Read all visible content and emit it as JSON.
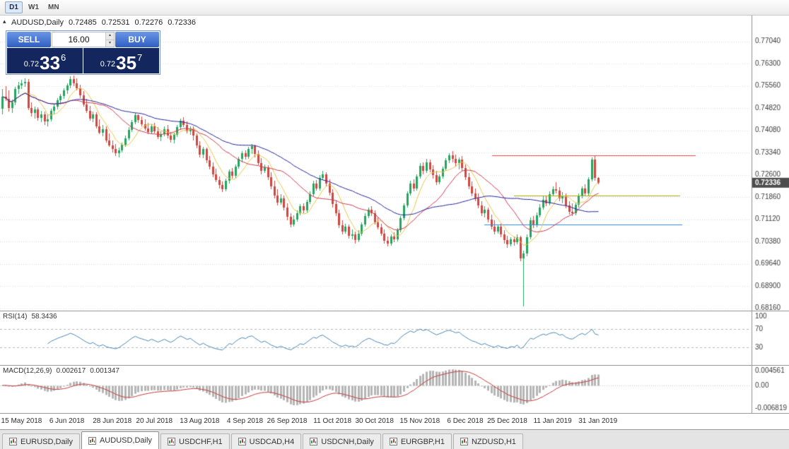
{
  "toolbar": {
    "timeframes": [
      {
        "label": "D1",
        "active": true
      },
      {
        "label": "W1",
        "active": false
      },
      {
        "label": "MN",
        "active": false
      }
    ]
  },
  "icons": {
    "one_click_collapse": "▴",
    "volume_up": "▴",
    "volume_down": "▾"
  },
  "chart_header": {
    "symbol_title": "AUDUSD,Daily",
    "open": "0.72485",
    "high": "0.72531",
    "low": "0.72276",
    "close": "0.72336"
  },
  "one_click": {
    "sell_label": "SELL",
    "buy_label": "BUY",
    "volume": "16.00",
    "bid_small": "0.72",
    "bid_big": "33",
    "bid_pip": "6",
    "ask_small": "0.72",
    "ask_big": "35",
    "ask_pip": "7"
  },
  "indicators": {
    "rsi": {
      "name": "RSI(14)",
      "value": "58.3436"
    },
    "macd": {
      "name": "MACD(12,26,9)",
      "value1": "0.002617",
      "value2": "0.001347"
    }
  },
  "tabs": [
    {
      "label": "EURUSD,Daily",
      "active": false
    },
    {
      "label": "AUDUSD,Daily",
      "active": true
    },
    {
      "label": "USDCHF,H1",
      "active": false
    },
    {
      "label": "USDCAD,H4",
      "active": false
    },
    {
      "label": "USDCNH,Daily",
      "active": false
    },
    {
      "label": "EURGBP,H1",
      "active": false
    },
    {
      "label": "NZDUSD,H1",
      "active": false
    }
  ],
  "colors": {
    "bull": "#26a35f",
    "bear": "#d04740",
    "grid": "#dcdcdc",
    "scale_text": "#3c3c3c",
    "badge_bg": "#4d4d4d",
    "badge_text": "#ffffff",
    "divider": "#8f8f8f",
    "ma_fast": "#e6c84a",
    "ma_mid": "#cf3a50",
    "ma_slow": "#24249a",
    "hline_red": "#e8483f",
    "hline_olive": "#a8a800",
    "hline_blue": "#2e8be0",
    "rsi_line": "#4a85b5",
    "rsi_level": "#b8b8b8",
    "macd_hist": "#b5b5b5",
    "macd_signal": "#c23b3b"
  },
  "chart_data": {
    "type": "candlestick",
    "title": "AUDUSD,Daily",
    "last_ohlc": {
      "open": 0.72485,
      "high": 0.72531,
      "low": 0.72276,
      "close": 0.72336
    },
    "ylim": [
      0.6808,
      0.779
    ],
    "price_ticks": [
      0.7704,
      0.763,
      0.7556,
      0.7482,
      0.7408,
      0.7334,
      0.726,
      0.7186,
      0.7112,
      0.7038,
      0.6964,
      0.689,
      0.6816
    ],
    "current_price": 0.72336,
    "x_labels": [
      "15 May 2018",
      "6 Jun 2018",
      "28 Jun 2018",
      "20 Jul 2018",
      "13 Aug 2018",
      "4 Sep 2018",
      "26 Sep 2018",
      "11 Oct 2018",
      "30 Oct 2018",
      "15 Nov 2018",
      "6 Dec 2018",
      "25 Dec 2018",
      "11 Jan 2019",
      "31 Jan 2019"
    ],
    "x_label_indices": [
      6,
      20,
      34,
      47,
      61,
      75,
      88,
      102,
      115,
      129,
      143,
      156,
      170,
      184
    ],
    "moving_averages": [
      {
        "period": 7,
        "color_key": "ma_fast"
      },
      {
        "period": 18,
        "color_key": "ma_mid"
      },
      {
        "period": 40,
        "color_key": "ma_slow"
      }
    ],
    "hlines": [
      {
        "price": 0.7325,
        "color_key": "hline_red",
        "x_from": 0.655,
        "x_to": 0.927
      },
      {
        "price": 0.719,
        "color_key": "hline_olive",
        "x_from": 0.685,
        "x_to": 0.906
      },
      {
        "price": 0.7095,
        "color_key": "hline_blue",
        "x_from": 0.645,
        "x_to": 0.909
      }
    ],
    "indicators": {
      "rsi": {
        "period": 14,
        "last": 58.3436,
        "levels": [
          100,
          70,
          30
        ],
        "range": [
          0,
          100
        ]
      },
      "macd": {
        "fast": 12,
        "slow": 26,
        "signal": 9,
        "last_macd": 0.002617,
        "last_signal": 0.001347,
        "scale_labels": [
          "0.004561",
          "0.00",
          "-0.006819"
        ],
        "scale_max": 0.004561,
        "scale_min": -0.006819
      }
    },
    "candles": [
      [
        0.748,
        0.7545,
        0.746,
        0.752
      ],
      [
        0.752,
        0.7555,
        0.7505,
        0.7512
      ],
      [
        0.7512,
        0.754,
        0.747,
        0.7482
      ],
      [
        0.7482,
        0.751,
        0.7465,
        0.75
      ],
      [
        0.75,
        0.7553,
        0.7492,
        0.7545
      ],
      [
        0.7545,
        0.757,
        0.753,
        0.7558
      ],
      [
        0.7558,
        0.7576,
        0.7545,
        0.7565
      ],
      [
        0.7565,
        0.758,
        0.7552,
        0.757
      ],
      [
        0.757,
        0.7578,
        0.7475,
        0.7482
      ],
      [
        0.7482,
        0.75,
        0.7455,
        0.7465
      ],
      [
        0.7465,
        0.7488,
        0.7448,
        0.7478
      ],
      [
        0.7478,
        0.7485,
        0.744,
        0.745
      ],
      [
        0.745,
        0.7472,
        0.7435,
        0.7462
      ],
      [
        0.7462,
        0.747,
        0.7425,
        0.7438
      ],
      [
        0.7438,
        0.746,
        0.742,
        0.7445
      ],
      [
        0.7445,
        0.748,
        0.7438,
        0.7472
      ],
      [
        0.7472,
        0.7495,
        0.746,
        0.7488
      ],
      [
        0.7488,
        0.7515,
        0.7478,
        0.7508
      ],
      [
        0.7508,
        0.753,
        0.7495,
        0.7522
      ],
      [
        0.7522,
        0.7548,
        0.7512,
        0.754
      ],
      [
        0.754,
        0.7565,
        0.753,
        0.7558
      ],
      [
        0.7558,
        0.7588,
        0.7548,
        0.7578
      ],
      [
        0.7578,
        0.759,
        0.7555,
        0.7565
      ],
      [
        0.7565,
        0.7582,
        0.754,
        0.7548
      ],
      [
        0.7548,
        0.756,
        0.7515,
        0.7525
      ],
      [
        0.7525,
        0.7538,
        0.7488,
        0.7495
      ],
      [
        0.7495,
        0.7512,
        0.7465,
        0.7472
      ],
      [
        0.7472,
        0.749,
        0.744,
        0.7448
      ],
      [
        0.7448,
        0.747,
        0.7435,
        0.746
      ],
      [
        0.746,
        0.7468,
        0.7415,
        0.7422
      ],
      [
        0.7422,
        0.7445,
        0.7395,
        0.74
      ],
      [
        0.74,
        0.7425,
        0.7388,
        0.7412
      ],
      [
        0.7412,
        0.742,
        0.7368,
        0.7375
      ],
      [
        0.7375,
        0.7398,
        0.7352,
        0.7358
      ],
      [
        0.7358,
        0.7375,
        0.7335,
        0.7345
      ],
      [
        0.7345,
        0.7362,
        0.7322,
        0.7332
      ],
      [
        0.7332,
        0.735,
        0.7318,
        0.7342
      ],
      [
        0.7342,
        0.7368,
        0.7335,
        0.736
      ],
      [
        0.736,
        0.739,
        0.7352,
        0.7382
      ],
      [
        0.7382,
        0.7418,
        0.7375,
        0.741
      ],
      [
        0.741,
        0.7442,
        0.7402,
        0.7435
      ],
      [
        0.7435,
        0.7465,
        0.7428,
        0.7458
      ],
      [
        0.7458,
        0.7462,
        0.7432,
        0.7442
      ],
      [
        0.7442,
        0.7455,
        0.742,
        0.7428
      ],
      [
        0.7428,
        0.7445,
        0.7408,
        0.7415
      ],
      [
        0.7415,
        0.7432,
        0.7395,
        0.7402
      ],
      [
        0.7402,
        0.7428,
        0.7395,
        0.742
      ],
      [
        0.742,
        0.7432,
        0.7398,
        0.7405
      ],
      [
        0.7405,
        0.7418,
        0.7378,
        0.7385
      ],
      [
        0.7385,
        0.7405,
        0.7372,
        0.7396
      ],
      [
        0.7396,
        0.742,
        0.7388,
        0.7412
      ],
      [
        0.7412,
        0.7425,
        0.7382,
        0.739
      ],
      [
        0.739,
        0.7402,
        0.7368,
        0.7376
      ],
      [
        0.7376,
        0.74,
        0.7365,
        0.7394
      ],
      [
        0.7394,
        0.7425,
        0.7386,
        0.7418
      ],
      [
        0.7418,
        0.7448,
        0.741,
        0.744
      ],
      [
        0.744,
        0.7452,
        0.7418,
        0.7426
      ],
      [
        0.7426,
        0.7438,
        0.7398,
        0.7405
      ],
      [
        0.7405,
        0.7422,
        0.7392,
        0.7415
      ],
      [
        0.7415,
        0.7422,
        0.7375,
        0.739
      ],
      [
        0.739,
        0.7398,
        0.7348,
        0.7358
      ],
      [
        0.7358,
        0.7372,
        0.7318,
        0.7328
      ],
      [
        0.7328,
        0.7352,
        0.7315,
        0.7345
      ],
      [
        0.7345,
        0.735,
        0.7298,
        0.7308
      ],
      [
        0.7308,
        0.7322,
        0.7278,
        0.7288
      ],
      [
        0.7288,
        0.7302,
        0.7252,
        0.7262
      ],
      [
        0.7262,
        0.728,
        0.7235,
        0.7242
      ],
      [
        0.7242,
        0.7255,
        0.7215,
        0.7225
      ],
      [
        0.7225,
        0.7238,
        0.7202,
        0.7212
      ],
      [
        0.7212,
        0.7248,
        0.7205,
        0.724
      ],
      [
        0.724,
        0.7278,
        0.7232,
        0.727
      ],
      [
        0.727,
        0.7282,
        0.7248,
        0.7256
      ],
      [
        0.7256,
        0.7295,
        0.725,
        0.7288
      ],
      [
        0.7288,
        0.732,
        0.728,
        0.7312
      ],
      [
        0.7312,
        0.734,
        0.7302,
        0.7332
      ],
      [
        0.7332,
        0.7342,
        0.731,
        0.732
      ],
      [
        0.732,
        0.7352,
        0.7312,
        0.7345
      ],
      [
        0.7345,
        0.7362,
        0.733,
        0.7355
      ],
      [
        0.7355,
        0.736,
        0.7318,
        0.733
      ],
      [
        0.733,
        0.7342,
        0.7292,
        0.73
      ],
      [
        0.73,
        0.7315,
        0.7262,
        0.7272
      ],
      [
        0.7272,
        0.7295,
        0.7265,
        0.7285
      ],
      [
        0.7285,
        0.7292,
        0.7242,
        0.7252
      ],
      [
        0.7252,
        0.7268,
        0.7212,
        0.7222
      ],
      [
        0.7222,
        0.724,
        0.7182,
        0.7192
      ],
      [
        0.7192,
        0.7212,
        0.7158,
        0.7168
      ],
      [
        0.7168,
        0.7195,
        0.716,
        0.7182
      ],
      [
        0.7182,
        0.719,
        0.7142,
        0.7152
      ],
      [
        0.7152,
        0.7165,
        0.7108,
        0.712
      ],
      [
        0.712,
        0.7132,
        0.7085,
        0.7095
      ],
      [
        0.7095,
        0.7125,
        0.7088,
        0.7112
      ],
      [
        0.7112,
        0.7142,
        0.7105,
        0.7132
      ],
      [
        0.7132,
        0.7162,
        0.7125,
        0.7155
      ],
      [
        0.7155,
        0.7165,
        0.7132,
        0.7142
      ],
      [
        0.7142,
        0.7178,
        0.7135,
        0.717
      ],
      [
        0.717,
        0.7205,
        0.7162,
        0.7195
      ],
      [
        0.7195,
        0.724,
        0.7188,
        0.723
      ],
      [
        0.723,
        0.7242,
        0.7208,
        0.7215
      ],
      [
        0.7215,
        0.7258,
        0.7208,
        0.725
      ],
      [
        0.725,
        0.7272,
        0.7242,
        0.7262
      ],
      [
        0.7262,
        0.7268,
        0.7222,
        0.7232
      ],
      [
        0.7232,
        0.7245,
        0.7192,
        0.72
      ],
      [
        0.72,
        0.7212,
        0.7152,
        0.7162
      ],
      [
        0.7162,
        0.7175,
        0.7122,
        0.7132
      ],
      [
        0.7132,
        0.7145,
        0.7082,
        0.7092
      ],
      [
        0.7092,
        0.7108,
        0.7062,
        0.7072
      ],
      [
        0.7072,
        0.7098,
        0.7065,
        0.7088
      ],
      [
        0.7088,
        0.7095,
        0.7048,
        0.7058
      ],
      [
        0.7058,
        0.7078,
        0.7045,
        0.7062
      ],
      [
        0.7062,
        0.7072,
        0.7032,
        0.7042
      ],
      [
        0.7042,
        0.7075,
        0.7035,
        0.7065
      ],
      [
        0.7065,
        0.7102,
        0.7058,
        0.7095
      ],
      [
        0.7095,
        0.7132,
        0.7088,
        0.7122
      ],
      [
        0.7122,
        0.7152,
        0.7115,
        0.7145
      ],
      [
        0.7145,
        0.7155,
        0.7122,
        0.7132
      ],
      [
        0.7132,
        0.7142,
        0.7095,
        0.7102
      ],
      [
        0.7102,
        0.7118,
        0.7078,
        0.7085
      ],
      [
        0.7085,
        0.7098,
        0.7058,
        0.7065
      ],
      [
        0.7065,
        0.7078,
        0.7032,
        0.704
      ],
      [
        0.704,
        0.7055,
        0.7022,
        0.7032
      ],
      [
        0.7032,
        0.7062,
        0.7025,
        0.7055
      ],
      [
        0.7055,
        0.7068,
        0.7035,
        0.7045
      ],
      [
        0.7045,
        0.7082,
        0.7038,
        0.7075
      ],
      [
        0.7075,
        0.7122,
        0.7068,
        0.7115
      ],
      [
        0.7115,
        0.7165,
        0.7108,
        0.7158
      ],
      [
        0.7158,
        0.7205,
        0.715,
        0.7198
      ],
      [
        0.7198,
        0.724,
        0.719,
        0.7232
      ],
      [
        0.7232,
        0.7245,
        0.7205,
        0.7215
      ],
      [
        0.7215,
        0.7262,
        0.7208,
        0.7255
      ],
      [
        0.7255,
        0.7298,
        0.7248,
        0.729
      ],
      [
        0.729,
        0.7302,
        0.7262,
        0.7272
      ],
      [
        0.7272,
        0.7312,
        0.7265,
        0.7302
      ],
      [
        0.7302,
        0.731,
        0.7268,
        0.7278
      ],
      [
        0.7278,
        0.7292,
        0.7248,
        0.7258
      ],
      [
        0.7258,
        0.7272,
        0.7225,
        0.7235
      ],
      [
        0.7235,
        0.7262,
        0.7228,
        0.7255
      ],
      [
        0.7255,
        0.7288,
        0.7248,
        0.728
      ],
      [
        0.728,
        0.7315,
        0.7272,
        0.7308
      ],
      [
        0.7308,
        0.7332,
        0.7298,
        0.7325
      ],
      [
        0.7325,
        0.7338,
        0.7302,
        0.7312
      ],
      [
        0.7312,
        0.7328,
        0.7288,
        0.7298
      ],
      [
        0.7298,
        0.7318,
        0.7278,
        0.731
      ],
      [
        0.731,
        0.7322,
        0.7272,
        0.7282
      ],
      [
        0.7282,
        0.7295,
        0.7242,
        0.7252
      ],
      [
        0.7252,
        0.7265,
        0.7212,
        0.7222
      ],
      [
        0.7222,
        0.7238,
        0.7188,
        0.7198
      ],
      [
        0.7198,
        0.7215,
        0.7172,
        0.7182
      ],
      [
        0.7182,
        0.7198,
        0.7148,
        0.7158
      ],
      [
        0.7158,
        0.7172,
        0.7122,
        0.7132
      ],
      [
        0.7132,
        0.7155,
        0.7118,
        0.7145
      ],
      [
        0.7145,
        0.7152,
        0.7102,
        0.7112
      ],
      [
        0.7112,
        0.7128,
        0.7078,
        0.7088
      ],
      [
        0.7088,
        0.7108,
        0.7062,
        0.7072
      ],
      [
        0.7072,
        0.7095,
        0.7065,
        0.7088
      ],
      [
        0.7088,
        0.7098,
        0.7052,
        0.7062
      ],
      [
        0.7062,
        0.7075,
        0.7032,
        0.7042
      ],
      [
        0.7042,
        0.7058,
        0.7018,
        0.7028
      ],
      [
        0.7028,
        0.7052,
        0.7022,
        0.7045
      ],
      [
        0.7045,
        0.7055,
        0.7025,
        0.7035
      ],
      [
        0.7035,
        0.7062,
        0.7028,
        0.7052
      ],
      [
        0.7052,
        0.7058,
        0.6972,
        0.6982
      ],
      [
        0.6982,
        0.7008,
        0.6822,
        0.6998
      ],
      [
        0.6998,
        0.7062,
        0.699,
        0.7052
      ],
      [
        0.7052,
        0.7118,
        0.7045,
        0.7108
      ],
      [
        0.7108,
        0.7122,
        0.7082,
        0.7092
      ],
      [
        0.7092,
        0.7135,
        0.7085,
        0.7125
      ],
      [
        0.7125,
        0.7162,
        0.7118,
        0.7152
      ],
      [
        0.7152,
        0.7188,
        0.7145,
        0.7178
      ],
      [
        0.7178,
        0.7192,
        0.7155,
        0.7165
      ],
      [
        0.7165,
        0.7205,
        0.7158,
        0.7195
      ],
      [
        0.7195,
        0.7222,
        0.7188,
        0.7212
      ],
      [
        0.7212,
        0.7235,
        0.7198,
        0.7208
      ],
      [
        0.7208,
        0.7218,
        0.7172,
        0.7182
      ],
      [
        0.7182,
        0.7202,
        0.7165,
        0.7192
      ],
      [
        0.7192,
        0.7198,
        0.7148,
        0.7158
      ],
      [
        0.7158,
        0.7172,
        0.7128,
        0.7138
      ],
      [
        0.7138,
        0.7165,
        0.7122,
        0.7132
      ],
      [
        0.7132,
        0.7168,
        0.7125,
        0.716
      ],
      [
        0.716,
        0.7198,
        0.7152,
        0.719
      ],
      [
        0.719,
        0.7222,
        0.7182,
        0.7215
      ],
      [
        0.7215,
        0.7228,
        0.7188,
        0.7198
      ],
      [
        0.7198,
        0.7252,
        0.7192,
        0.7245
      ],
      [
        0.7245,
        0.7318,
        0.7238,
        0.731
      ],
      [
        0.731,
        0.7325,
        0.724,
        0.725
      ],
      [
        0.72485,
        0.72531,
        0.72276,
        0.72336
      ]
    ]
  }
}
